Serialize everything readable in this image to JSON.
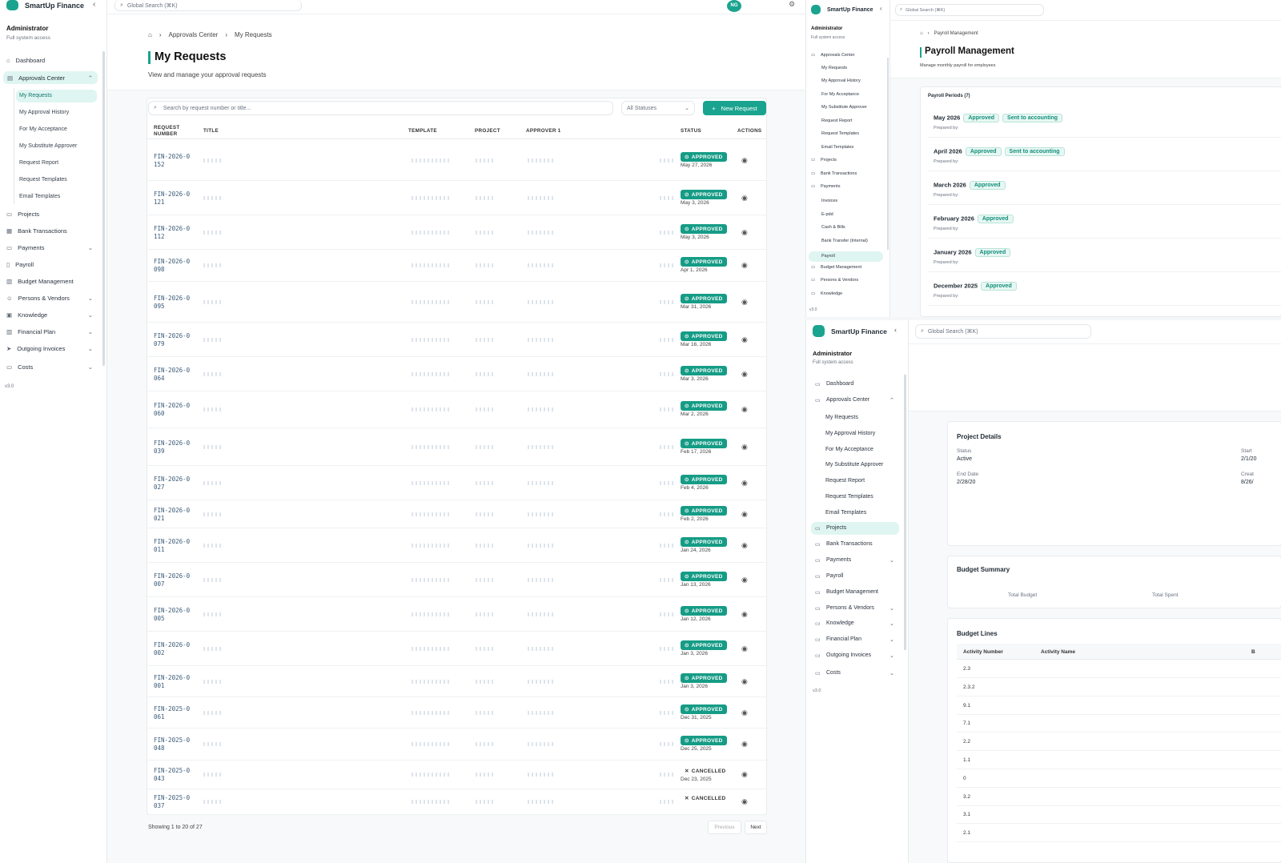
{
  "app": {
    "name": "SmartUp Finance",
    "version": "v3.0"
  },
  "user": {
    "role": "Administrator",
    "access": "Full system access",
    "initials": "NG"
  },
  "global_search": {
    "placeholder": "Global Search (⌘K)"
  },
  "sidebar": {
    "dashboard": "Dashboard",
    "approvals_center": "Approvals Center",
    "approvals_sub": [
      "My Requests",
      "My Approval History",
      "For My Acceptance",
      "My Substitute Approver",
      "Request Report",
      "Request Templates",
      "Email Templates"
    ],
    "projects": "Projects",
    "bank_transactions": "Bank Transactions",
    "payments": "Payments",
    "payments_sub": [
      "Invoices",
      "E-pdd",
      "Cash & Bills",
      "Bank Transfer (Internal)"
    ],
    "payroll": "Payroll",
    "budget_management": "Budget Management",
    "persons_vendors": "Persons & Vendors",
    "knowledge": "Knowledge",
    "financial_plan": "Financial Plan",
    "outgoing_invoices": "Outgoing Invoices",
    "costs": "Costs"
  },
  "main": {
    "breadcrumb": [
      "Approvals Center",
      "My Requests"
    ],
    "title": "My Requests",
    "subtitle": "View and manage your approval requests",
    "search_placeholder": "Search by request number or title...",
    "status_filter": "All Statuses",
    "new_request": "New Request",
    "columns": [
      "REQUEST NUMBER",
      "TITLE",
      "TEMPLATE",
      "PROJECT",
      "APPROVER 1",
      "ACTIONS",
      "STATUS",
      "ACTIONS"
    ],
    "rows": [
      {
        "number": "FIN-2026-0152",
        "status": "APPROVED",
        "date": "May 27, 2026"
      },
      {
        "number": "FIN-2026-0121",
        "status": "APPROVED",
        "date": "May 3, 2026"
      },
      {
        "number": "FIN-2026-0112",
        "status": "APPROVED",
        "date": "May 3, 2026"
      },
      {
        "number": "FIN-2026-0098",
        "status": "APPROVED",
        "date": "Apr 1, 2026"
      },
      {
        "number": "FIN-2026-0095",
        "status": "APPROVED",
        "date": "Mar 31, 2026"
      },
      {
        "number": "FIN-2026-0079",
        "status": "APPROVED",
        "date": "Mar 16, 2026"
      },
      {
        "number": "FIN-2026-0064",
        "status": "APPROVED",
        "date": "Mar 3, 2026"
      },
      {
        "number": "FIN-2026-0060",
        "status": "APPROVED",
        "date": "Mar 2, 2026"
      },
      {
        "number": "FIN-2026-0039",
        "status": "APPROVED",
        "date": "Feb 17, 2026"
      },
      {
        "number": "FIN-2026-0027",
        "status": "APPROVED",
        "date": "Feb 4, 2026"
      },
      {
        "number": "FIN-2026-0021",
        "status": "APPROVED",
        "date": "Feb 2, 2026"
      },
      {
        "number": "FIN-2026-0011",
        "status": "APPROVED",
        "date": "Jan 24, 2026"
      },
      {
        "number": "FIN-2026-0007",
        "status": "APPROVED",
        "date": "Jan 13, 2026"
      },
      {
        "number": "FIN-2026-0005",
        "status": "APPROVED",
        "date": "Jan 12, 2026"
      },
      {
        "number": "FIN-2026-0002",
        "status": "APPROVED",
        "date": "Jan 3, 2026"
      },
      {
        "number": "FIN-2026-0001",
        "status": "APPROVED",
        "date": "Jan 3, 2026"
      },
      {
        "number": "FIN-2025-0061",
        "status": "APPROVED",
        "date": "Dec 31, 2025"
      },
      {
        "number": "FIN-2025-0048",
        "status": "APPROVED",
        "date": "Dec 25, 2025"
      },
      {
        "number": "FIN-2025-0043",
        "status": "CANCELLED",
        "date": "Dec 23, 2025"
      },
      {
        "number": "FIN-2025-0037",
        "status": "CANCELLED",
        "date": ""
      }
    ],
    "pagination": {
      "showing": "Showing 1 to 20 of 27",
      "prev": "Previous",
      "next": "Next"
    }
  },
  "payroll": {
    "breadcrumb": "Payroll Management",
    "title": "Payroll Management",
    "subtitle": "Manage monthly payroll for employees",
    "section": "Payroll Periods (7)",
    "periods": [
      {
        "month": "May 2026",
        "status": "Approved",
        "extra": "Sent to accounting",
        "prepared": "Prepared by:"
      },
      {
        "month": "April 2026",
        "status": "Approved",
        "extra": "Sent to accounting",
        "prepared": "Prepared by:"
      },
      {
        "month": "March 2026",
        "status": "Approved",
        "extra": "",
        "prepared": "Prepared by:"
      },
      {
        "month": "February 2026",
        "status": "Approved",
        "extra": "",
        "prepared": "Prepared by:"
      },
      {
        "month": "January 2026",
        "status": "Approved",
        "extra": "",
        "prepared": "Prepared by:"
      },
      {
        "month": "December 2025",
        "status": "Approved",
        "extra": "",
        "prepared": "Prepared by:"
      }
    ]
  },
  "project": {
    "details_title": "Project Details",
    "status_label": "Status",
    "status_value": "Active",
    "start_label": "Start",
    "start_value": "2/1/20",
    "end_label": "End Date",
    "end_value": "2/28/20",
    "created_label": "Creat",
    "created_value": "8/26/",
    "budget_title": "Budget Summary",
    "total_budget": "Total Budget",
    "total_spent": "Total Spent",
    "lines_title": "Budget Lines",
    "col_activity_number": "Activity Number",
    "col_activity_name": "Activity Name",
    "col_b": "B",
    "lines": [
      "2.3",
      "2.3.2",
      "9.1",
      "7.1",
      "2.2",
      "1.1",
      "0",
      "3.2",
      "3.1",
      "2.1"
    ]
  },
  "colors": {
    "accent": "#1aa48f",
    "approved": "#169c86",
    "active_bg": "#dff5f1"
  }
}
